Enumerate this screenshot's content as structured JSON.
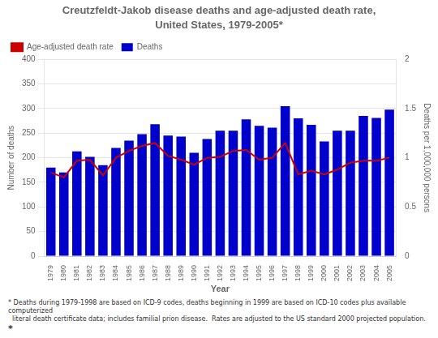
{
  "chart_data": {
    "type": "bar",
    "title": "Creutzfeldt-Jakob disease deaths and age-adjusted death rate,",
    "subtitle": "United States, 1979-2005*",
    "xlabel": "Year",
    "ylabel": "Number of deaths",
    "y2label": "Deaths per 1,000,000 persons",
    "categories": [
      "1979",
      "1980",
      "1981",
      "1982",
      "1983",
      "1984",
      "1985",
      "1986",
      "1987",
      "1988",
      "1989",
      "1990",
      "1991",
      "1992",
      "1993",
      "1994",
      "1995",
      "1996",
      "1997",
      "1998",
      "1999",
      "2000",
      "2001",
      "2002",
      "2003",
      "2004",
      "2005"
    ],
    "series": [
      {
        "name": "Deaths",
        "type": "bar",
        "color": "#0000CD",
        "values": [
          180,
          170,
          213,
          202,
          185,
          220,
          235,
          248,
          268,
          245,
          243,
          210,
          238,
          255,
          255,
          278,
          265,
          261,
          305,
          280,
          267,
          233,
          255,
          255,
          285,
          281,
          298
        ]
      },
      {
        "name": "Age-adjusted death rate",
        "type": "line",
        "color": "#CC0000",
        "axis": "y2",
        "values": [
          0.85,
          0.8,
          0.97,
          0.98,
          0.82,
          1.0,
          1.07,
          1.12,
          1.15,
          1.02,
          0.98,
          0.93,
          1.0,
          1.01,
          1.07,
          1.08,
          0.98,
          1.0,
          1.15,
          0.83,
          0.87,
          0.83,
          0.88,
          0.95,
          0.97,
          0.97,
          1.0
        ]
      }
    ],
    "ylim": [
      0,
      400
    ],
    "yticks": [
      0,
      50,
      100,
      150,
      200,
      250,
      300,
      350,
      400
    ],
    "y2lim": [
      0,
      2
    ],
    "y2ticks": [
      0,
      0.5,
      1,
      1.5,
      2
    ],
    "grid": true,
    "legend": "upper left",
    "annotations": [
      "* Deaths during 1979-1998 are based on ICD-9 codes, deaths beginning in 1999 are based on ICD-10 codes plus available computerized",
      "  literal death certificate data; includes familial prion disease.  Rates are adjusted to the US standard 2000 projected population.",
      "*"
    ]
  }
}
